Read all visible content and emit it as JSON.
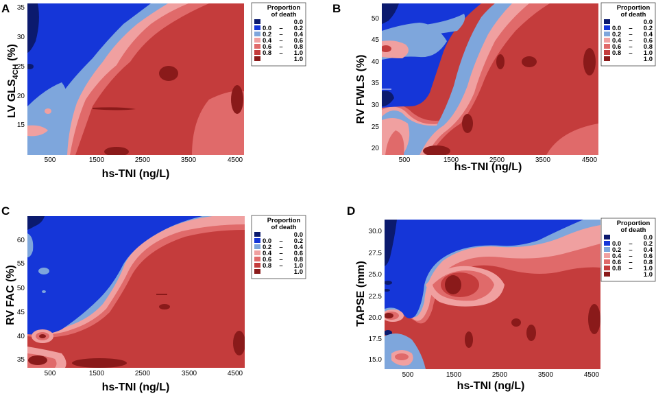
{
  "palette": {
    "c0": "#0b1a6e",
    "c1": "#1536d8",
    "c2": "#7ea6dc",
    "c3": "#f0a0a0",
    "c4": "#e06a6a",
    "c5": "#c43c3c",
    "c6": "#8a1a1a"
  },
  "chart_data": [
    {
      "type": "heatmap",
      "panel": "A",
      "xlabel": "hs-TNI (ng/L)",
      "ylabel_main": "LV GLS",
      "ylabel_sub": "4CH",
      "ylabel_tail": " (%)",
      "xticks": [
        "500",
        "1500",
        "2500",
        "3500",
        "4500"
      ],
      "yticks": [
        "15",
        "20",
        "25",
        "30",
        "35"
      ],
      "xlim": [
        0,
        4700
      ],
      "ylim": [
        11,
        36
      ],
      "legend": {
        "title1": "Proportion",
        "title2": "of death",
        "entries": [
          {
            "from": "",
            "dash": "",
            "to": "0.0"
          },
          {
            "from": "0.0",
            "dash": "–",
            "to": "0.2"
          },
          {
            "from": "0.2",
            "dash": "–",
            "to": "0.4"
          },
          {
            "from": "0.4",
            "dash": "–",
            "to": "0.6"
          },
          {
            "from": "0.6",
            "dash": "–",
            "to": "0.8"
          },
          {
            "from": "0.8",
            "dash": "–",
            "to": "1.0"
          },
          {
            "from": "",
            "dash": "",
            "to": "1.0"
          }
        ]
      }
    },
    {
      "type": "heatmap",
      "panel": "B",
      "xlabel": "hs-TNI (ng/L)",
      "ylabel_main": "RV FWLS (%)",
      "ylabel_sub": "",
      "ylabel_tail": "",
      "xticks": [
        "500",
        "1500",
        "2500",
        "3500",
        "4500"
      ],
      "yticks": [
        "20",
        "25",
        "30",
        "35",
        "40",
        "45",
        "50"
      ],
      "xlim": [
        0,
        4700
      ],
      "ylim": [
        18.5,
        53.5
      ],
      "legend": {
        "title1": "Proportion",
        "title2": "of death",
        "entries": [
          {
            "from": "",
            "dash": "",
            "to": "0.0"
          },
          {
            "from": "0.0",
            "dash": "–",
            "to": "0.2"
          },
          {
            "from": "0.2",
            "dash": "–",
            "to": "0.4"
          },
          {
            "from": "0.4",
            "dash": "–",
            "to": "0.6"
          },
          {
            "from": "0.6",
            "dash": "–",
            "to": "0.8"
          },
          {
            "from": "0.8",
            "dash": "–",
            "to": "1.0"
          },
          {
            "from": "",
            "dash": "",
            "to": "1.0"
          }
        ]
      }
    },
    {
      "type": "heatmap",
      "panel": "C",
      "xlabel": "hs-TNI (ng/L)",
      "ylabel_main": "RV FAC (%)",
      "ylabel_sub": "",
      "ylabel_tail": "",
      "xticks": [
        "500",
        "1500",
        "2500",
        "3500",
        "4500"
      ],
      "yticks": [
        "35",
        "40",
        "45",
        "50",
        "55",
        "60"
      ],
      "xlim": [
        0,
        4700
      ],
      "ylim": [
        33,
        64
      ],
      "legend": {
        "title1": "Proportion",
        "title2": "of death",
        "entries": [
          {
            "from": "",
            "dash": "",
            "to": "0.0"
          },
          {
            "from": "0.0",
            "dash": "–",
            "to": "0.2"
          },
          {
            "from": "0.2",
            "dash": "–",
            "to": "0.4"
          },
          {
            "from": "0.4",
            "dash": "–",
            "to": "0.6"
          },
          {
            "from": "0.6",
            "dash": "–",
            "to": "0.8"
          },
          {
            "from": "0.8",
            "dash": "–",
            "to": "1.0"
          },
          {
            "from": "",
            "dash": "",
            "to": "1.0"
          }
        ]
      }
    },
    {
      "type": "heatmap",
      "panel": "D",
      "xlabel": "hs-TNI (ng/L)",
      "ylabel_main": "TAPSE (mm)",
      "ylabel_sub": "",
      "ylabel_tail": "",
      "xticks": [
        "500",
        "1500",
        "2500",
        "3500",
        "4500"
      ],
      "yticks": [
        "15.0",
        "17.5",
        "20.0",
        "22.5",
        "25.0",
        "27.5",
        "30.0"
      ],
      "xlim": [
        0,
        4700
      ],
      "ylim": [
        13.8,
        31.3
      ],
      "legend": {
        "title1": "Proportion",
        "title2": "of death",
        "entries": [
          {
            "from": "",
            "dash": "",
            "to": "0.0"
          },
          {
            "from": "0.0",
            "dash": "–",
            "to": "0.2"
          },
          {
            "from": "0.2",
            "dash": "–",
            "to": "0.4"
          },
          {
            "from": "0.4",
            "dash": "–",
            "to": "0.6"
          },
          {
            "from": "0.6",
            "dash": "–",
            "to": "0.8"
          },
          {
            "from": "0.8",
            "dash": "–",
            "to": "1.0"
          },
          {
            "from": "",
            "dash": "",
            "to": "1.0"
          }
        ]
      }
    }
  ]
}
